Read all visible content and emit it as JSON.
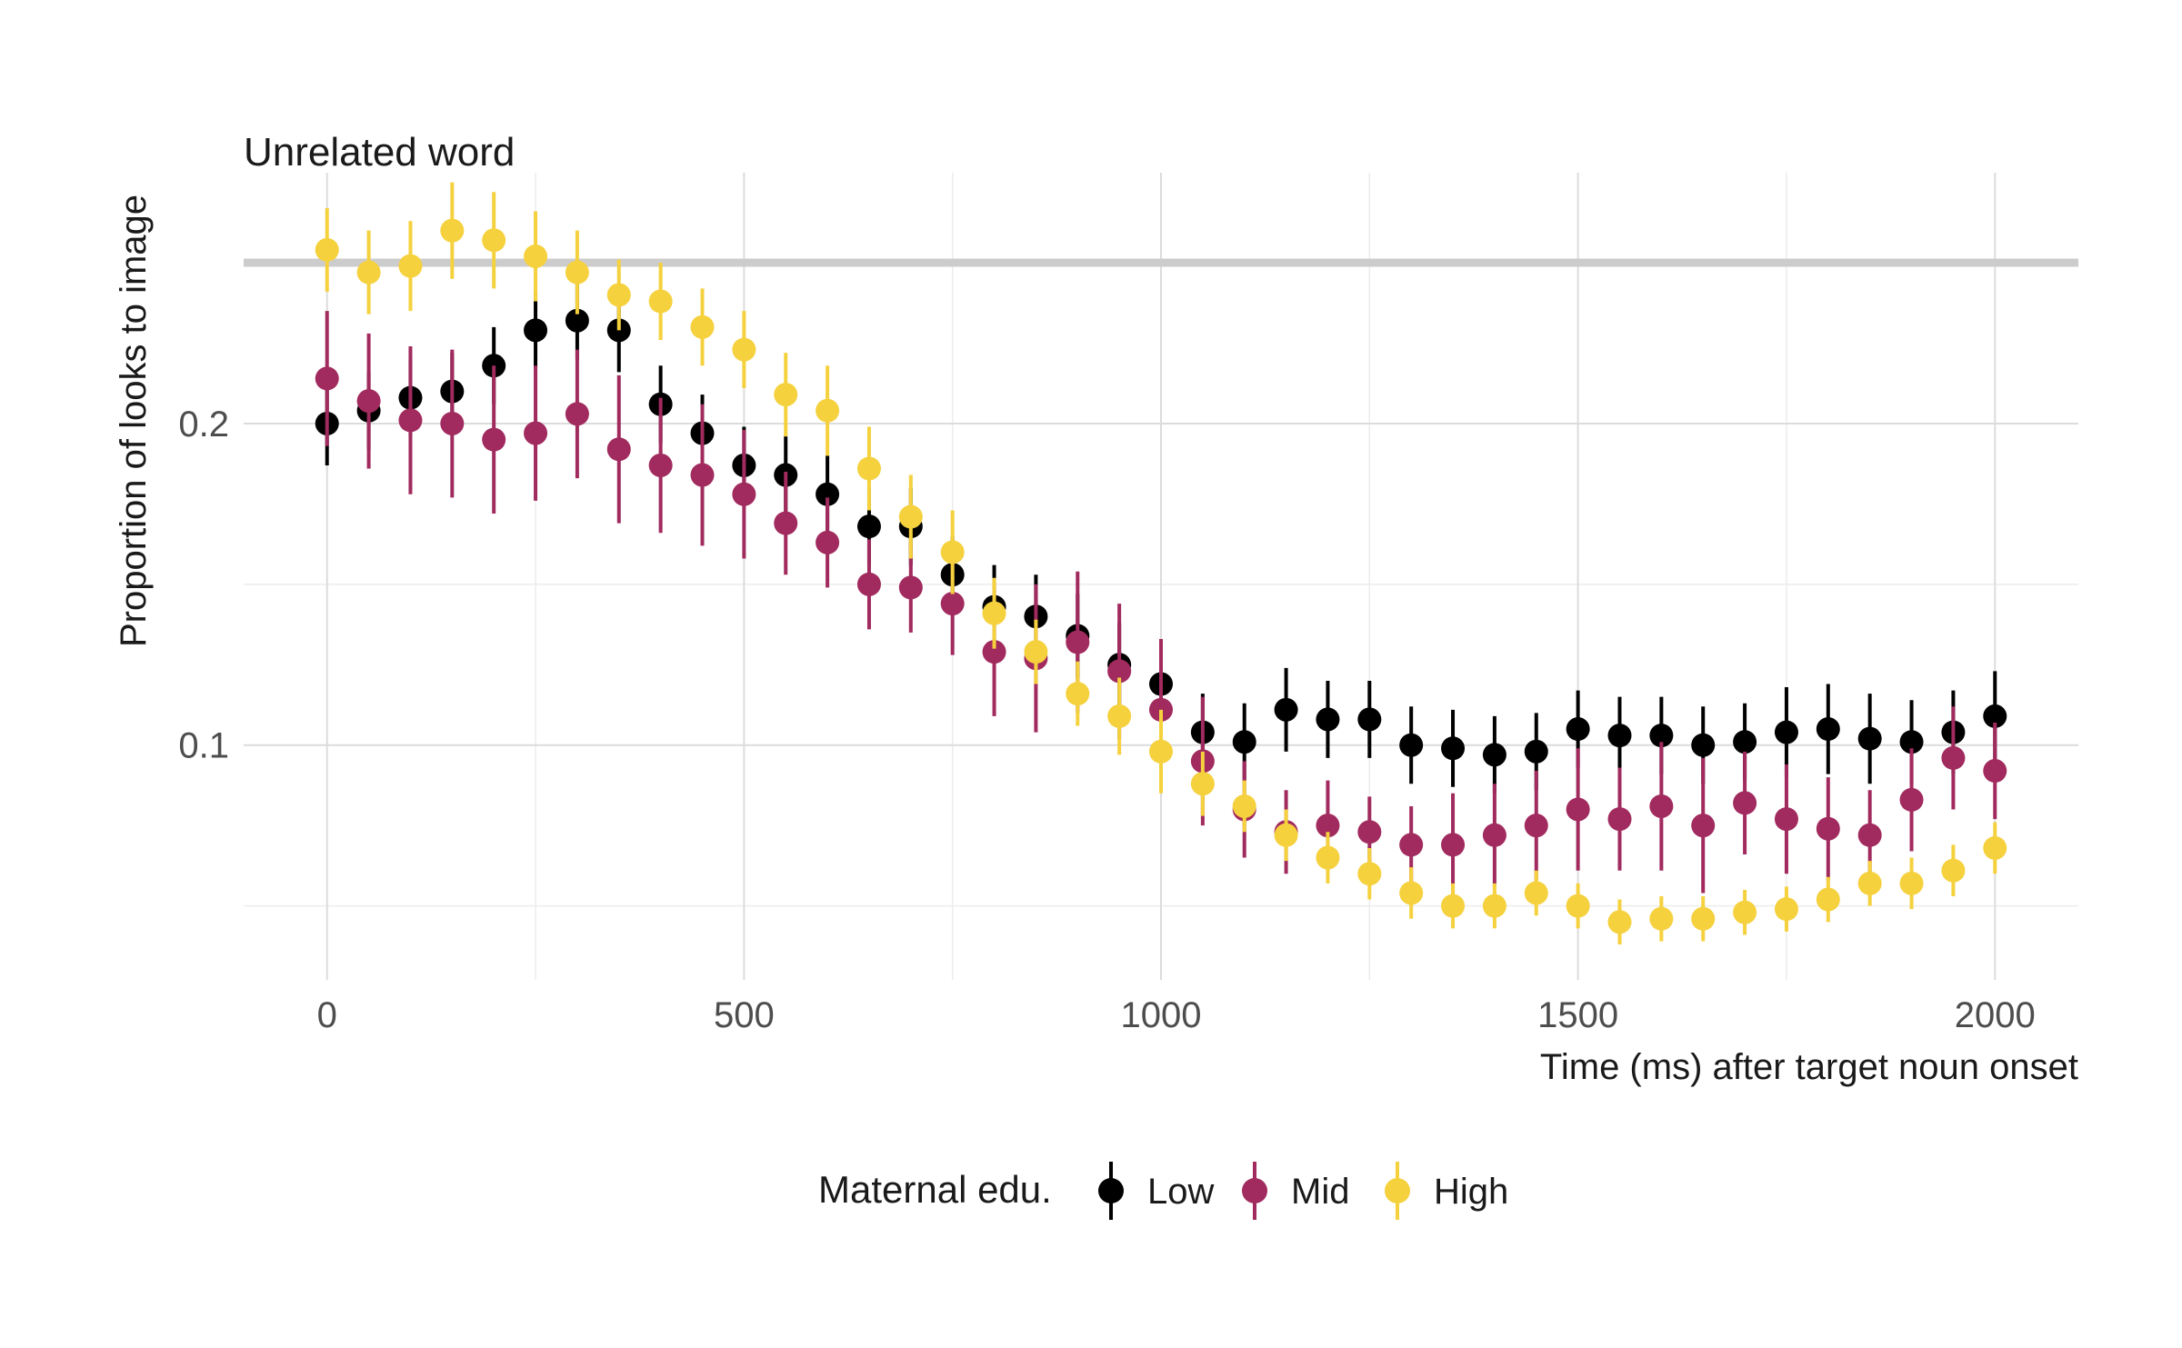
{
  "chart_data": {
    "type": "scatter",
    "title": "Unrelated word",
    "xlabel": "Time (ms) after target noun onset",
    "ylabel": "Proportion of looks to image",
    "xlim": [
      -100,
      2100
    ],
    "ylim": [
      0.027,
      0.278
    ],
    "x_ticks": [
      0,
      500,
      1000,
      1500,
      2000
    ],
    "x_tick_labels": [
      "0",
      "500",
      "1000",
      "1500",
      "2000"
    ],
    "y_ticks": [
      0.1,
      0.2
    ],
    "y_tick_labels": [
      "0.1",
      "0.2"
    ],
    "reference_line": {
      "y": 0.25,
      "color": "#cccccc"
    },
    "grid": true,
    "legend": {
      "title": "Maternal edu.",
      "position": "bottom"
    },
    "x": [
      0,
      50,
      100,
      150,
      200,
      250,
      300,
      350,
      400,
      450,
      500,
      550,
      600,
      650,
      700,
      750,
      800,
      850,
      900,
      950,
      1000,
      1050,
      1100,
      1150,
      1200,
      1250,
      1300,
      1350,
      1400,
      1450,
      1500,
      1550,
      1600,
      1650,
      1700,
      1750,
      1800,
      1850,
      1900,
      1950,
      2000
    ],
    "series": [
      {
        "name": "Low",
        "color": "#000000",
        "values": [
          0.2,
          0.204,
          0.208,
          0.21,
          0.218,
          0.229,
          0.232,
          0.229,
          0.206,
          0.197,
          0.187,
          0.184,
          0.178,
          0.168,
          0.168,
          0.153,
          0.143,
          0.14,
          0.134,
          0.125,
          0.119,
          0.104,
          0.101,
          0.111,
          0.108,
          0.108,
          0.1,
          0.099,
          0.097,
          0.098,
          0.105,
          0.103,
          0.103,
          0.1,
          0.101,
          0.104,
          0.105,
          0.102,
          0.101,
          0.104,
          0.109
        ],
        "error": [
          0.013,
          0.012,
          0.012,
          0.012,
          0.012,
          0.012,
          0.012,
          0.013,
          0.012,
          0.012,
          0.012,
          0.012,
          0.012,
          0.012,
          0.012,
          0.012,
          0.013,
          0.013,
          0.013,
          0.013,
          0.013,
          0.012,
          0.012,
          0.013,
          0.012,
          0.012,
          0.012,
          0.012,
          0.012,
          0.012,
          0.012,
          0.012,
          0.012,
          0.012,
          0.012,
          0.014,
          0.014,
          0.014,
          0.013,
          0.013,
          0.014
        ]
      },
      {
        "name": "Mid",
        "color": "#a12a5e",
        "values": [
          0.214,
          0.207,
          0.201,
          0.2,
          0.195,
          0.197,
          0.203,
          0.192,
          0.187,
          0.184,
          0.178,
          0.169,
          0.163,
          0.15,
          0.149,
          0.144,
          0.129,
          0.127,
          0.132,
          0.123,
          0.111,
          0.095,
          0.08,
          0.073,
          0.075,
          0.073,
          0.069,
          0.069,
          0.072,
          0.075,
          0.08,
          0.077,
          0.081,
          0.075,
          0.082,
          0.077,
          0.074,
          0.072,
          0.083,
          0.096,
          0.092
        ],
        "error": [
          0.021,
          0.021,
          0.023,
          0.023,
          0.023,
          0.021,
          0.02,
          0.023,
          0.021,
          0.022,
          0.02,
          0.016,
          0.014,
          0.014,
          0.014,
          0.016,
          0.02,
          0.023,
          0.022,
          0.021,
          0.022,
          0.02,
          0.015,
          0.013,
          0.014,
          0.011,
          0.012,
          0.016,
          0.016,
          0.017,
          0.019,
          0.016,
          0.02,
          0.021,
          0.016,
          0.017,
          0.016,
          0.014,
          0.016,
          0.016,
          0.015
        ]
      },
      {
        "name": "High",
        "color": "#f5d13e",
        "values": [
          0.254,
          0.247,
          0.249,
          0.26,
          0.257,
          0.252,
          0.247,
          0.24,
          0.238,
          0.23,
          0.223,
          0.209,
          0.204,
          0.186,
          0.171,
          0.16,
          0.141,
          0.129,
          0.116,
          0.109,
          0.098,
          0.088,
          0.081,
          0.072,
          0.065,
          0.06,
          0.054,
          0.05,
          0.05,
          0.054,
          0.05,
          0.045,
          0.046,
          0.046,
          0.048,
          0.049,
          0.052,
          0.057,
          0.057,
          0.061,
          0.068
        ],
        "error": [
          0.013,
          0.013,
          0.014,
          0.015,
          0.015,
          0.014,
          0.013,
          0.011,
          0.012,
          0.012,
          0.012,
          0.013,
          0.014,
          0.013,
          0.013,
          0.013,
          0.011,
          0.01,
          0.01,
          0.012,
          0.013,
          0.01,
          0.008,
          0.008,
          0.008,
          0.008,
          0.008,
          0.007,
          0.007,
          0.007,
          0.007,
          0.007,
          0.007,
          0.007,
          0.007,
          0.007,
          0.007,
          0.007,
          0.008,
          0.008,
          0.008
        ]
      }
    ]
  }
}
